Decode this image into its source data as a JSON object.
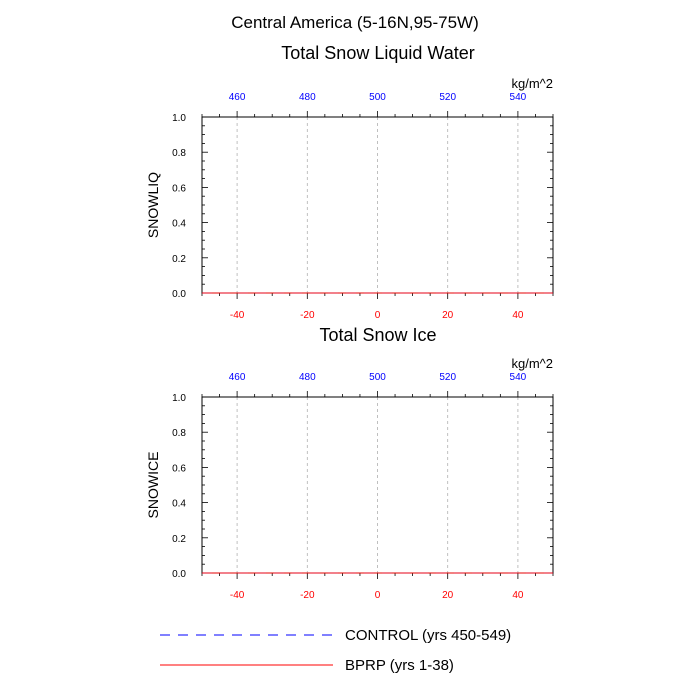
{
  "figure": {
    "title": "Central America (5-16N,95-75W)"
  },
  "chart_data": [
    {
      "type": "line",
      "title": "Total Snow Liquid Water",
      "units": "kg/m^2",
      "ylabel": "SNOWLIQ",
      "ylim": [
        0.0,
        1.0
      ],
      "yticks": [
        "0.0",
        "0.2",
        "0.4",
        "0.6",
        "0.8",
        "1.0"
      ],
      "xlim_bottom": [
        -50,
        50
      ],
      "xticks_bottom": [
        "-40",
        "-20",
        "0",
        "20",
        "40"
      ],
      "xlim_top": [
        450,
        550
      ],
      "xticks_top": [
        "460",
        "480",
        "500",
        "520",
        "540"
      ],
      "grid_x": true,
      "series": [
        {
          "name": "CONTROL (yrs 450-549)",
          "color": "#0000ff",
          "dash": "dashed",
          "x": [
            -50,
            50
          ],
          "y": [
            0,
            0
          ]
        },
        {
          "name": "BPRP (yrs 1-38)",
          "color": "#ff0000",
          "dash": "solid",
          "x": [
            -50,
            50
          ],
          "y": [
            0,
            0
          ]
        }
      ]
    },
    {
      "type": "line",
      "title": "Total Snow Ice",
      "units": "kg/m^2",
      "ylabel": "SNOWICE",
      "ylim": [
        0.0,
        1.0
      ],
      "yticks": [
        "0.0",
        "0.2",
        "0.4",
        "0.6",
        "0.8",
        "1.0"
      ],
      "xlim_bottom": [
        -50,
        50
      ],
      "xticks_bottom": [
        "-40",
        "-20",
        "0",
        "20",
        "40"
      ],
      "xlim_top": [
        450,
        550
      ],
      "xticks_top": [
        "460",
        "480",
        "500",
        "520",
        "540"
      ],
      "grid_x": true,
      "series": [
        {
          "name": "CONTROL (yrs 450-549)",
          "color": "#0000ff",
          "dash": "dashed",
          "x": [
            -50,
            50
          ],
          "y": [
            0,
            0
          ]
        },
        {
          "name": "BPRP (yrs 1-38)",
          "color": "#ff0000",
          "dash": "solid",
          "x": [
            -50,
            50
          ],
          "y": [
            0,
            0
          ]
        }
      ]
    }
  ],
  "legend": {
    "items": [
      {
        "label": "CONTROL (yrs 450-549)",
        "color": "#0000ff",
        "dash": "dashed"
      },
      {
        "label": "BPRP (yrs 1-38)",
        "color": "#ff0000",
        "dash": "solid"
      }
    ]
  },
  "colors": {
    "top_axis_labels": "#0000ff",
    "bottom_axis_labels": "#ff0000",
    "gridline": "#b0b0b0"
  }
}
